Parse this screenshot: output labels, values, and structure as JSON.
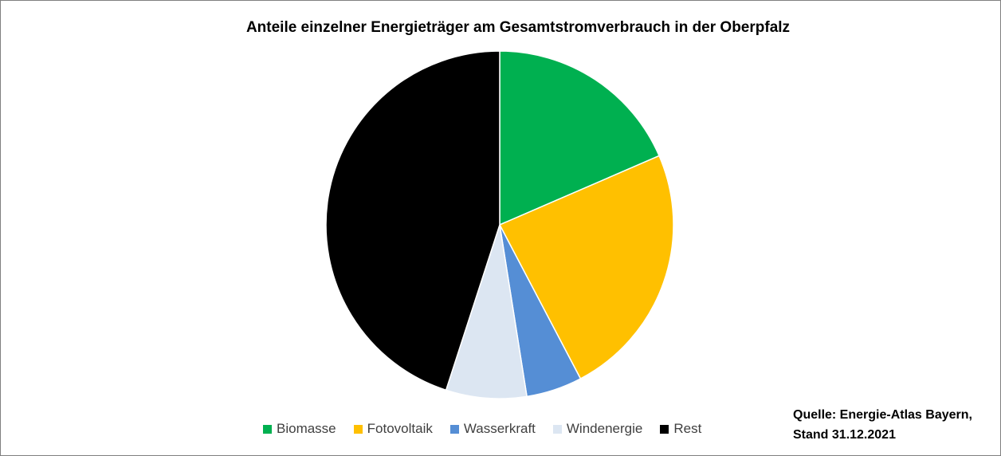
{
  "chart_data": {
    "type": "pie",
    "title": "Anteile einzelner Energieträger am Gesamtstromverbrauch in der Oberpfalz",
    "series": [
      {
        "name": "Biomasse",
        "value": 18.5,
        "color": "#00b050"
      },
      {
        "name": "Fotovoltaik",
        "value": 23.8,
        "color": "#ffc000"
      },
      {
        "name": "Wasserkraft",
        "value": 5.2,
        "color": "#558ed5"
      },
      {
        "name": "Windenergie",
        "value": 7.5,
        "color": "#dce6f2"
      },
      {
        "name": "Rest",
        "value": 45.0,
        "color": "#000000"
      }
    ],
    "legend_position": "bottom",
    "data_labels": false
  },
  "source": {
    "line1": "Quelle: Energie-Atlas Bayern,",
    "line2": "Stand 31.12.2021"
  }
}
